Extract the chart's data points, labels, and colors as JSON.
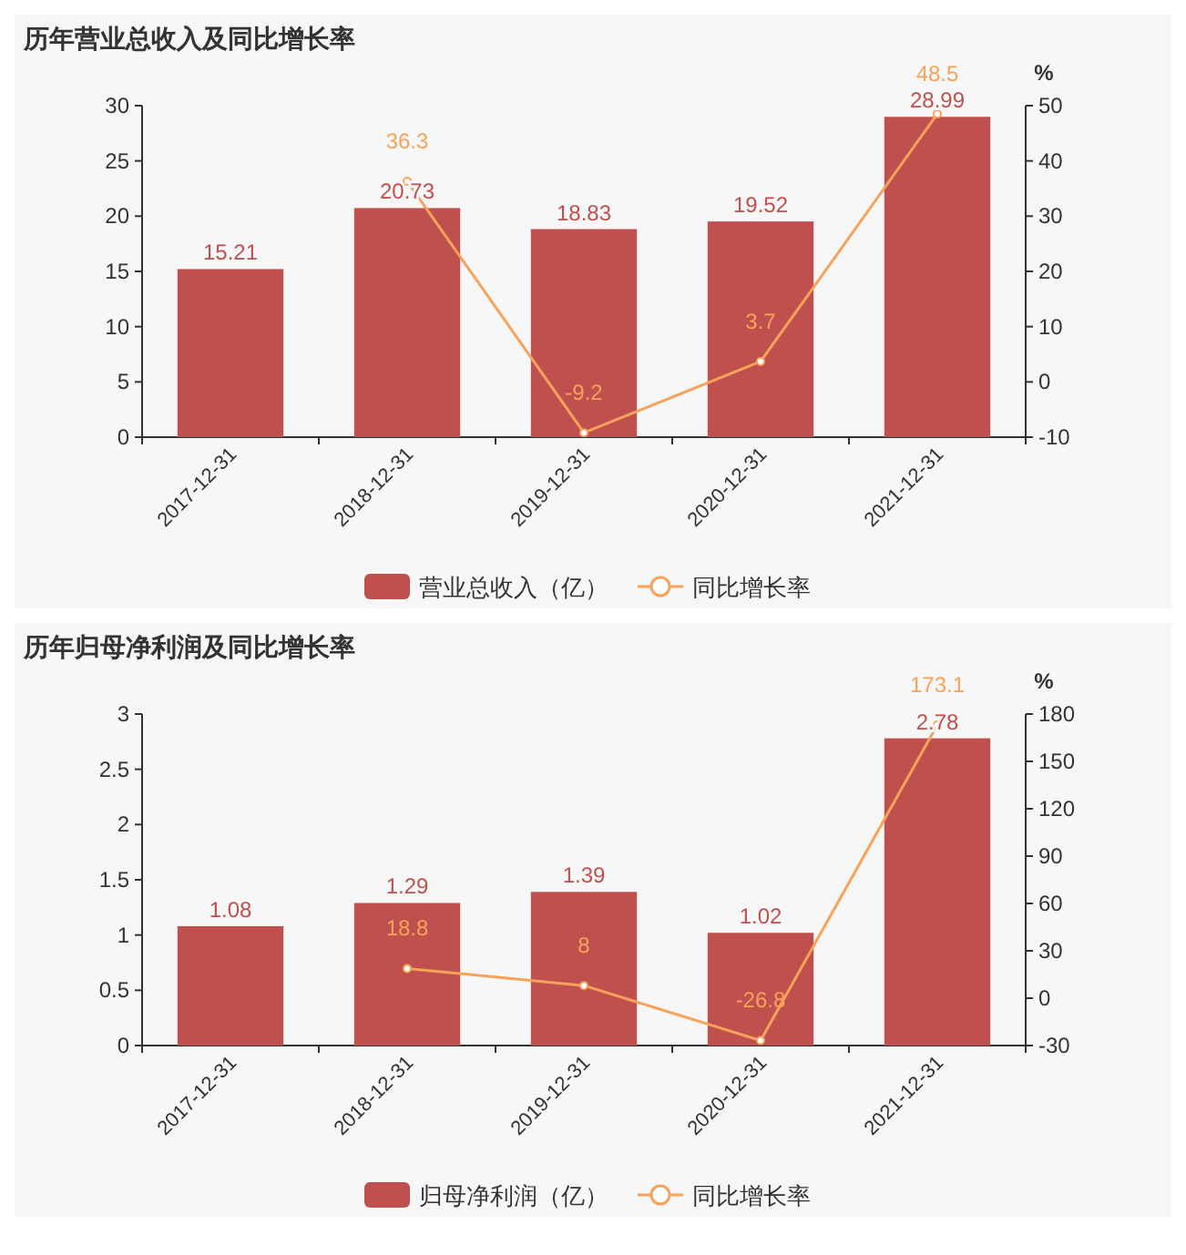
{
  "chart_data": [
    {
      "type": "bar",
      "title": "历年营业总收入及同比增长率",
      "categories": [
        "2017-12-31",
        "2018-12-31",
        "2019-12-31",
        "2020-12-31",
        "2021-12-31"
      ],
      "series": [
        {
          "name": "营业总收入（亿）",
          "color": "#c0504d",
          "values": [
            15.21,
            20.73,
            18.83,
            19.52,
            28.99
          ]
        },
        {
          "name": "同比增长率",
          "type": "line",
          "axis": "y2",
          "color": "#f7a35c",
          "values": [
            null,
            36.3,
            -9.2,
            3.7,
            48.5
          ]
        }
      ],
      "ylim": [
        0,
        30
      ],
      "yticks": [
        0,
        5,
        10,
        15,
        20,
        25,
        30
      ],
      "y2lim": [
        -10,
        50
      ],
      "y2ticks": [
        -10,
        0,
        10,
        20,
        30,
        40,
        50
      ],
      "y2label": "%",
      "data_labels": true,
      "legend": "bottom",
      "marker": "circle",
      "grid": false
    },
    {
      "type": "bar",
      "title": "历年归母净利润及同比增长率",
      "categories": [
        "2017-12-31",
        "2018-12-31",
        "2019-12-31",
        "2020-12-31",
        "2021-12-31"
      ],
      "series": [
        {
          "name": "归母净利润（亿）",
          "color": "#c0504d",
          "values": [
            1.08,
            1.29,
            1.39,
            1.02,
            2.78
          ]
        },
        {
          "name": "同比增长率",
          "type": "line",
          "axis": "y2",
          "color": "#f7a35c",
          "values": [
            null,
            18.8,
            8,
            -26.8,
            173.1
          ]
        }
      ],
      "ylim": [
        0,
        3
      ],
      "yticks": [
        0,
        0.5,
        1,
        1.5,
        2,
        2.5,
        3
      ],
      "y2lim": [
        -30,
        180
      ],
      "y2ticks": [
        -30,
        0,
        30,
        60,
        90,
        120,
        150,
        180
      ],
      "y2label": "%",
      "data_labels": true,
      "legend": "bottom",
      "marker": "circle",
      "grid": false
    }
  ]
}
